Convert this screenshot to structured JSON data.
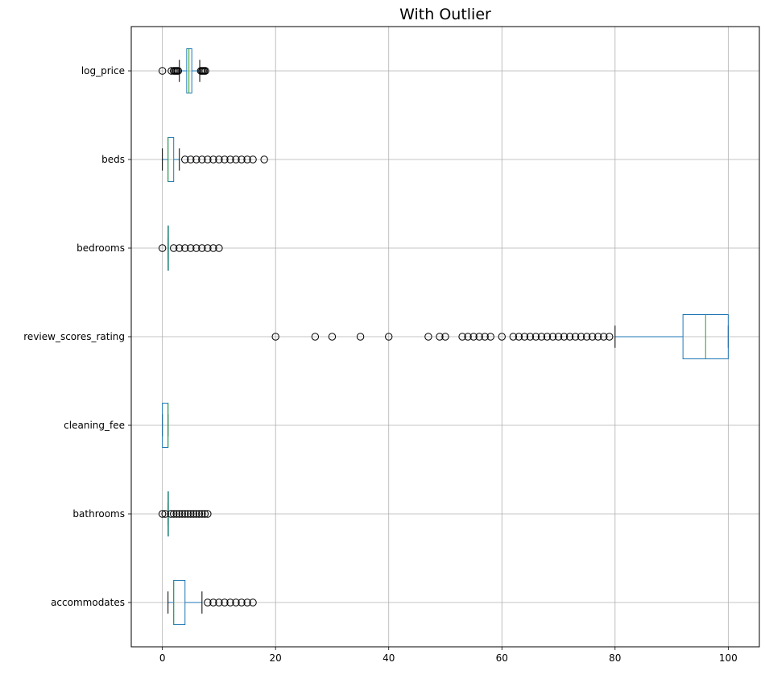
{
  "chart_data": {
    "type": "boxplot",
    "orientation": "horizontal",
    "title": "With Outlier",
    "xlabel": "",
    "ylabel": "",
    "xlim": [
      -5.5,
      105.5
    ],
    "xticks": [
      0,
      20,
      40,
      60,
      80,
      100
    ],
    "grid": true,
    "legend": "none",
    "colors": {
      "box": "#1f77b4",
      "median": "#2ca02c",
      "whisker_cap": "#000000",
      "outlier": "#000000",
      "grid": "#b0b0b0"
    },
    "categories": [
      "log_price",
      "beds",
      "bedrooms",
      "review_scores_rating",
      "cleaning_fee",
      "bathrooms",
      "accommodates"
    ],
    "series": [
      {
        "category": "log_price",
        "whislo": 3.0,
        "q1": 4.3,
        "med": 4.7,
        "q3": 5.2,
        "whishi": 6.6,
        "fliers": [
          0,
          1.6,
          2.0,
          2.2,
          2.4,
          2.6,
          2.8,
          6.8,
          7.0,
          7.2,
          7.4,
          7.6
        ]
      },
      {
        "category": "beds",
        "whislo": 0,
        "q1": 1,
        "med": 1,
        "q3": 2,
        "whishi": 3,
        "fliers": [
          4,
          5,
          6,
          7,
          8,
          9,
          10,
          11,
          12,
          13,
          14,
          15,
          16,
          18
        ]
      },
      {
        "category": "bedrooms",
        "whislo": 1,
        "q1": 1,
        "med": 1,
        "q3": 1,
        "whishi": 1,
        "fliers": [
          0,
          2,
          3,
          4,
          5,
          6,
          7,
          8,
          9,
          10
        ]
      },
      {
        "category": "review_scores_rating",
        "whislo": 80,
        "q1": 92,
        "med": 96,
        "q3": 100,
        "whishi": 100,
        "fliers": [
          20,
          27,
          30,
          35,
          40,
          47,
          49,
          50,
          53,
          54,
          55,
          56,
          57,
          58,
          60,
          62,
          63,
          64,
          65,
          66,
          67,
          68,
          69,
          70,
          71,
          72,
          73,
          74,
          75,
          76,
          77,
          78,
          79
        ]
      },
      {
        "category": "cleaning_fee",
        "whislo": 0,
        "q1": 0,
        "med": 1,
        "q3": 1,
        "whishi": 1,
        "fliers": []
      },
      {
        "category": "bathrooms",
        "whislo": 1,
        "q1": 1,
        "med": 1,
        "q3": 1,
        "whishi": 1,
        "fliers": [
          0,
          0.5,
          1.5,
          2,
          2.5,
          3,
          3.5,
          4,
          4.5,
          5,
          5.5,
          6,
          6.5,
          7,
          7.5,
          8
        ]
      },
      {
        "category": "accommodates",
        "whislo": 1,
        "q1": 2,
        "med": 2,
        "q3": 4,
        "whishi": 7,
        "fliers": [
          8,
          9,
          10,
          11,
          12,
          13,
          14,
          15,
          16
        ]
      }
    ]
  }
}
